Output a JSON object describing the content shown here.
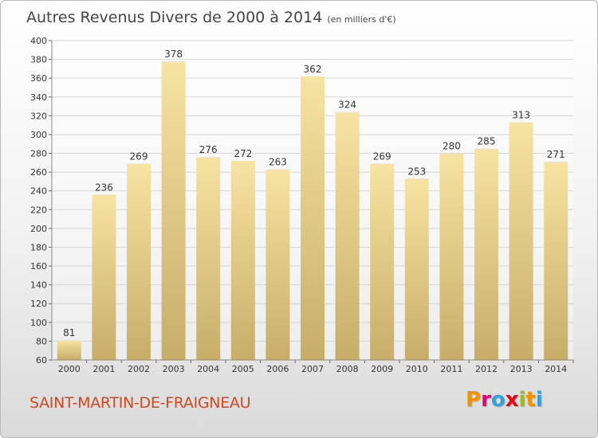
{
  "header": {
    "title": "Autres Revenus Divers de 2000 à 2014",
    "unit": "(en milliers d'€)"
  },
  "footer": {
    "commune": "SAINT-MARTIN-DE-FRAIGNEAU",
    "logo_letters": [
      "P",
      "r",
      "o",
      "x",
      "i",
      "t",
      "i"
    ],
    "logo_colors": [
      "#f29400",
      "#e4007c",
      "#2ea3dc",
      "#e30613",
      "#95c11f",
      "#f29400",
      "#2ea3dc"
    ]
  },
  "colors": {
    "bar_light": "#f7e3a2",
    "bar_dark": "#c8ad6a",
    "grid": "#d6d6d6",
    "axis_text": "#333333"
  },
  "chart_data": {
    "type": "bar",
    "title": "Autres Revenus Divers de 2000 à 2014",
    "subtitle": "(en milliers d'€)",
    "categories": [
      "2000",
      "2001",
      "2002",
      "2003",
      "2004",
      "2005",
      "2006",
      "2007",
      "2008",
      "2009",
      "2010",
      "2011",
      "2012",
      "2013",
      "2014"
    ],
    "values": [
      81,
      236,
      269,
      378,
      276,
      272,
      263,
      362,
      324,
      269,
      253,
      280,
      285,
      313,
      271
    ],
    "ylim": [
      60,
      400
    ],
    "yticks": [
      60,
      80,
      100,
      120,
      140,
      160,
      180,
      200,
      220,
      240,
      260,
      280,
      300,
      320,
      340,
      360,
      380,
      400
    ],
    "grid": true,
    "data_labels": true
  }
}
